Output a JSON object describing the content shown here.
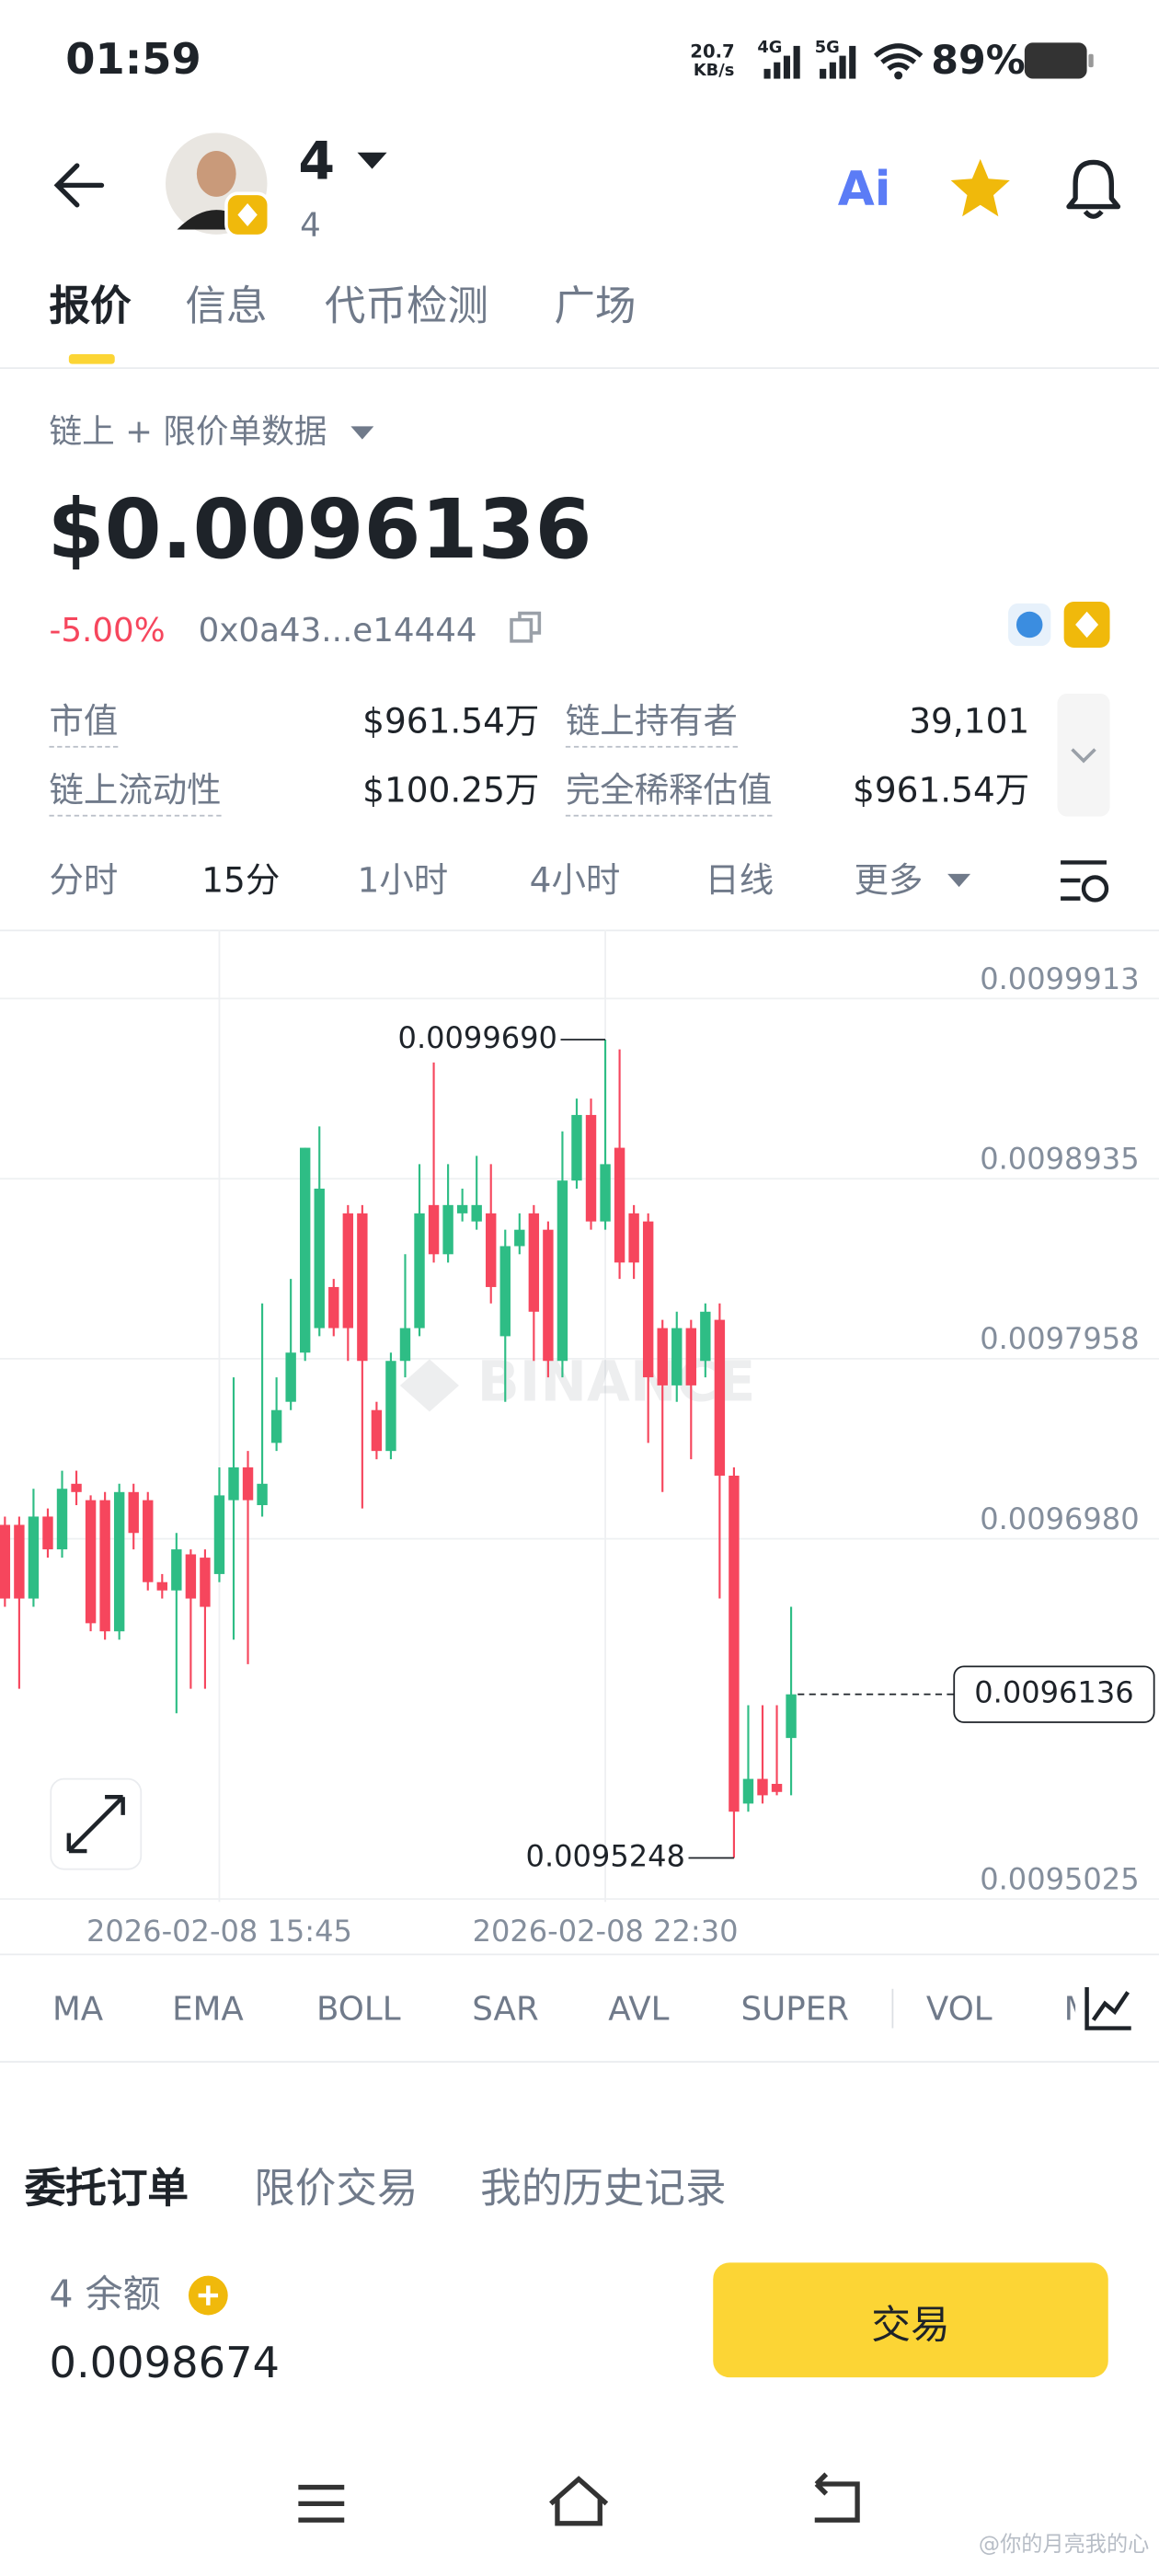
{
  "status_bar": {
    "time": "01:59",
    "speed_value": "20.7",
    "speed_unit": "KB/s",
    "network_1": "4G",
    "network_2": "5G",
    "battery": "89%"
  },
  "header": {
    "token_name": "4",
    "token_subtitle": "4",
    "ai_label": "Ai"
  },
  "tabs": [
    "报价",
    "信息",
    "代币检测",
    "广场"
  ],
  "data_source": "链上 + 限价单数据",
  "price": "$0.0096136",
  "change": "-5.00%",
  "contract": "0x0a43...e14444",
  "stats": [
    {
      "label": "市值",
      "value": "$961.54万"
    },
    {
      "label": "链上持有者",
      "value": "39,101"
    },
    {
      "label": "链上流动性",
      "value": "$100.25万"
    },
    {
      "label": "完全稀释估值",
      "value": "$961.54万"
    }
  ],
  "intervals": [
    "分时",
    "15分",
    "1小时",
    "4小时",
    "日线",
    "更多"
  ],
  "chart_data": {
    "type": "candlestick",
    "watermark": "BINANCE",
    "categories": [
      null,
      null,
      null,
      null,
      null,
      null,
      null,
      null,
      null,
      null,
      null,
      null,
      null,
      null,
      null,
      "2026-02-08 15:45",
      null,
      null,
      null,
      null,
      null,
      null,
      null,
      null,
      null,
      null,
      null,
      null,
      null,
      null,
      null,
      null,
      null,
      null,
      null,
      null,
      null,
      null,
      null,
      null,
      null,
      null,
      "2026-02-08 22:30",
      null,
      null,
      null,
      null,
      null,
      null,
      null,
      null,
      null,
      null,
      null,
      null,
      null
    ],
    "open": [
      0.0097056,
      0.0097056,
      0.0096656,
      0.0097101,
      0.0096923,
      0.0097279,
      0.009719,
      0.009719,
      0.0096478,
      0.0097234,
      0.009719,
      0.0096745,
      0.00967,
      0.0096896,
      0.0096878,
      0.0096789,
      0.009719,
      0.0097368,
      0.0097163,
      0.0097501,
      0.0097724,
      0.0097991,
      0.0098124,
      0.0098347,
      0.0098747,
      0.0098747,
      0.0097679,
      0.0097457,
      0.0097946,
      0.0098124,
      0.0098792,
      0.0098525,
      0.0098747,
      0.0098703,
      0.0098747,
      0.009808,
      0.0098569,
      0.0098747,
      0.0098658,
      0.0097946,
      0.0098925,
      0.0099281,
      0.0098703,
      0.0099103,
      0.0098747,
      0.0098703,
      0.0098124,
      0.0097813,
      0.0098124,
      0.0097946,
      0.0098169,
      0.0097323,
      0.0095543,
      0.0095677,
      0.009565,
      0.0095899
    ],
    "high": [
      0.0097101,
      0.0097101,
      0.0097252,
      0.0097145,
      0.009735,
      0.009735,
      0.0097216,
      0.0097234,
      0.0097279,
      0.0097279,
      0.0097234,
      0.0096789,
      0.0097012,
      0.0096923,
      0.0096923,
      0.0097368,
      0.0097857,
      0.0097457,
      0.0098258,
      0.0097857,
      0.0098391,
      0.0099103,
      0.0099219,
      0.0098391,
      0.0098792,
      0.0098792,
      0.0097724,
      0.0097991,
      0.0098525,
      0.0099014,
      0.0099566,
      0.0099014,
      0.0098881,
      0.0099059,
      0.0099014,
      0.0098658,
      0.0098747,
      0.0098792,
      0.0098703,
      0.0099192,
      0.009937,
      0.009937,
      0.009969,
      0.0099637,
      0.0098792,
      0.0098747,
      0.0098169,
      0.0098213,
      0.0098169,
      0.0098258,
      0.0098258,
      0.0097368,
      0.0096077,
      0.0096077,
      0.0096077,
      0.0096611
    ],
    "low": [
      0.0096611,
      0.0096166,
      0.0096611,
      0.0096878,
      0.0096878,
      0.0097163,
      0.0096478,
      0.0096433,
      0.0096433,
      0.0096923,
      0.00967,
      0.0096656,
      0.0096033,
      0.0096166,
      0.0096166,
      0.0096745,
      0.0096433,
      0.00963,
      0.0097101,
      0.0097457,
      0.0097679,
      0.0097946,
      0.009808,
      0.009808,
      0.0097946,
      0.0097145,
      0.0097412,
      0.0097412,
      0.0097857,
      0.009808,
      0.009848,
      0.009848,
      0.0098703,
      0.0098658,
      0.0098258,
      0.0097724,
      0.0098525,
      0.0097946,
      0.0097857,
      0.0097857,
      0.0098881,
      0.0098658,
      0.0098658,
      0.0098391,
      0.0098391,
      0.0097501,
      0.0097234,
      0.0097724,
      0.0097412,
      0.0097857,
      0.0096656,
      0.0095248,
      0.0095499,
      0.0095543,
      0.0095588,
      0.0095588
    ],
    "close": [
      0.0096656,
      0.0096656,
      0.0097101,
      0.0096923,
      0.0097252,
      0.0097234,
      0.0096522,
      0.0096478,
      0.0097234,
      0.0097012,
      0.0096745,
      0.00967,
      0.0096923,
      0.0096656,
      0.0096611,
      0.0097216,
      0.0097368,
      0.009719,
      0.0097279,
      0.0097679,
      0.0097991,
      0.0099103,
      0.0098881,
      0.0098124,
      0.0098124,
      0.0097946,
      0.0097457,
      0.0097946,
      0.0098124,
      0.0098747,
      0.0098525,
      0.0098792,
      0.0098792,
      0.0098792,
      0.0098347,
      0.0098569,
      0.0098658,
      0.0098213,
      0.0097946,
      0.0098925,
      0.0099281,
      0.0098703,
      0.0099014,
      0.009848,
      0.009848,
      0.0097857,
      0.0097813,
      0.0098124,
      0.0097813,
      0.0098213,
      0.0097323,
      0.0095499,
      0.0095677,
      0.0095588,
      0.0095606,
      0.0096136
    ],
    "up_color": "#2ebd85",
    "down_color": "#f6465d",
    "ylim": [
      0.0095009,
      0.0100287
    ],
    "yticks": [
      0.0099913,
      0.0098935,
      0.0097958,
      {
        "value": 0.009698,
        "label": "0.0096980"
      },
      0.0095025
    ],
    "grid": true,
    "max_marker": {
      "value": 0.009969,
      "label": "0.0099690"
    },
    "min_marker": 0.0095248,
    "last_price": 0.0096136
  },
  "indicators": [
    "MA",
    "EMA",
    "BOLL",
    "SAR",
    "AVL",
    "SUPER",
    "VOL",
    "M"
  ],
  "order_tabs": [
    "委托订单",
    "限价交易",
    "我的历史记录"
  ],
  "balance": {
    "asset": "4",
    "label": "余额",
    "value": "0.0098674"
  },
  "trade_button": "交易",
  "footer_watermark": "@你的月亮我的心"
}
